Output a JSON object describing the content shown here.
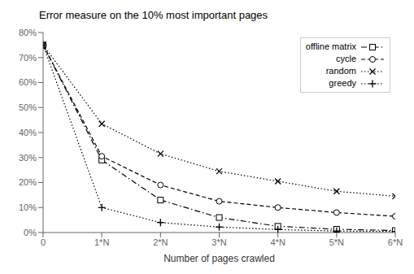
{
  "chart_data": {
    "type": "line",
    "title": "Error measure on the 10% most important pages",
    "xlabel": "Number of pages crawled",
    "x": [
      0,
      1,
      2,
      3,
      4,
      5,
      6
    ],
    "xlim": [
      0,
      6
    ],
    "xticks": [
      0,
      {
        "value": 1,
        "label": "1*N"
      },
      {
        "value": 2,
        "label": "2*N"
      },
      {
        "value": 3,
        "label": "3*N"
      },
      {
        "value": 4,
        "label": "4*N"
      },
      {
        "value": 5,
        "label": "5*N"
      },
      {
        "value": 6,
        "label": "6*N"
      }
    ],
    "ylim": [
      0,
      0.8
    ],
    "yticks": [
      {
        "value": 0.0,
        "label": "0%"
      },
      {
        "value": 0.1,
        "label": "10%"
      },
      {
        "value": 0.2,
        "label": "20%"
      },
      {
        "value": 0.3,
        "label": "30%"
      },
      {
        "value": 0.4,
        "label": "40%"
      },
      {
        "value": 0.5,
        "label": "50%"
      },
      {
        "value": 0.6,
        "label": "60%"
      },
      {
        "value": 0.7,
        "label": "70%"
      },
      {
        "value": 0.8,
        "label": "80%"
      }
    ],
    "grid": false,
    "legend": "upper right",
    "series": [
      {
        "name": "offline matrix",
        "color": "black",
        "line_style": "dashdot",
        "marker": "square",
        "values": [
          0.75,
          0.29,
          0.13,
          0.06,
          0.025,
          0.013,
          0.008
        ]
      },
      {
        "name": "cycle",
        "color": "black",
        "line_style": "dashed",
        "marker": "circle",
        "values": [
          0.75,
          0.305,
          0.19,
          0.125,
          0.1,
          0.08,
          0.065
        ]
      },
      {
        "name": "random",
        "color": "black",
        "line_style": "dotted",
        "marker": "x",
        "values": [
          0.75,
          0.435,
          0.315,
          0.245,
          0.205,
          0.165,
          0.145
        ]
      },
      {
        "name": "greedy",
        "color": "black",
        "line_style": "dotted",
        "marker": "plus",
        "values": [
          0.75,
          0.1,
          0.04,
          0.022,
          0.012,
          0.006,
          0.004
        ]
      }
    ]
  }
}
